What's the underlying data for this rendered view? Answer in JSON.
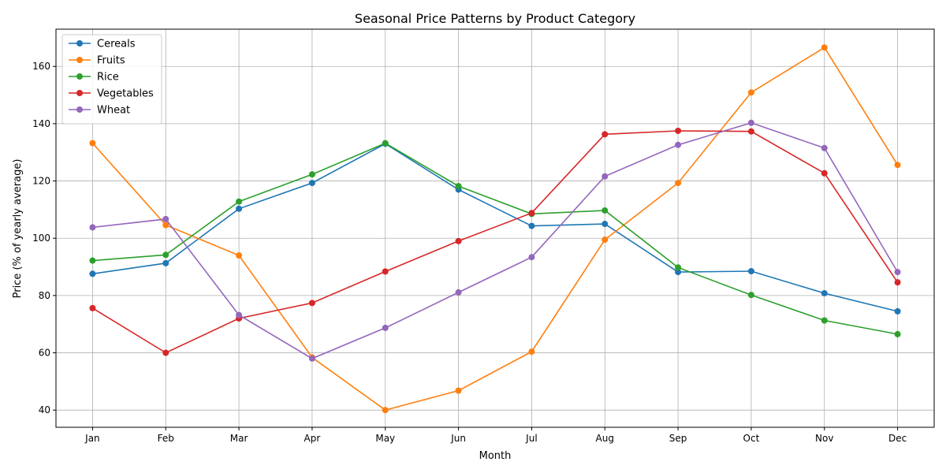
{
  "chart_data": {
    "type": "line",
    "title": "Seasonal Price Patterns by Product Category",
    "xlabel": "Month",
    "ylabel": "Price (% of yearly average)",
    "categories": [
      "Jan",
      "Feb",
      "Mar",
      "Apr",
      "May",
      "Jun",
      "Jul",
      "Aug",
      "Sep",
      "Oct",
      "Nov",
      "Dec"
    ],
    "ylim": [
      34,
      173
    ],
    "yticks": [
      40,
      60,
      80,
      100,
      120,
      140,
      160
    ],
    "grid": true,
    "legend_position": "top-left",
    "series": [
      {
        "name": "Cereals",
        "color": "#1f77b4",
        "values": [
          87.6,
          91.3,
          110.3,
          119.3,
          133.0,
          117.0,
          104.3,
          105.0,
          88.2,
          88.5,
          80.8,
          74.5
        ]
      },
      {
        "name": "Fruits",
        "color": "#ff7f0e",
        "values": [
          133.2,
          104.6,
          94.0,
          58.4,
          40.0,
          46.8,
          60.4,
          99.5,
          119.3,
          150.9,
          166.6,
          125.6
        ]
      },
      {
        "name": "Rice",
        "color": "#2ca02c",
        "values": [
          92.2,
          94.2,
          112.8,
          122.3,
          133.2,
          118.2,
          108.5,
          109.7,
          89.8,
          80.2,
          71.3,
          66.5
        ]
      },
      {
        "name": "Vegetables",
        "color": "#d62728",
        "values": [
          75.6,
          60.0,
          72.0,
          77.4,
          88.4,
          99.0,
          108.8,
          136.3,
          137.5,
          137.3,
          122.7,
          84.6
        ]
      },
      {
        "name": "Wheat",
        "color": "#9467bd",
        "values": [
          103.8,
          106.7,
          73.2,
          58.0,
          68.7,
          81.1,
          93.4,
          121.6,
          132.6,
          140.3,
          131.5,
          88.2
        ]
      }
    ]
  }
}
